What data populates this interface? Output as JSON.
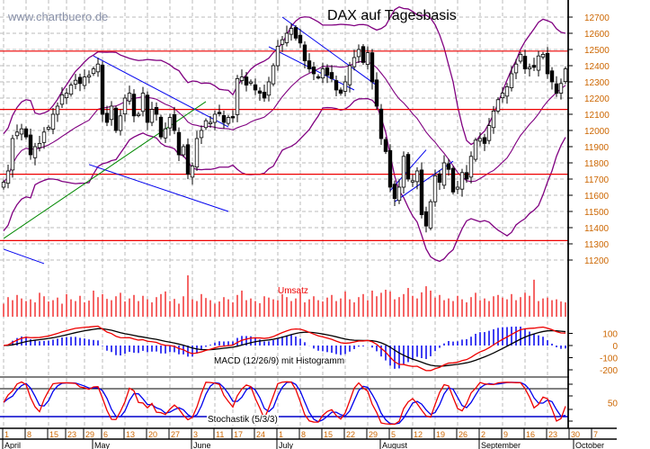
{
  "chart_data": {
    "type": "candlestick",
    "title": "DAX auf Tagesbasis",
    "watermark": "www.chartbuero.de",
    "price_axis": {
      "ylim": [
        11150,
        12800
      ],
      "ticks": [
        11200,
        11300,
        11400,
        11500,
        11600,
        11700,
        11800,
        11900,
        12000,
        12100,
        12200,
        12300,
        12400,
        12500,
        12600,
        12700
      ]
    },
    "grid": true,
    "close": [
      11680,
      11750,
      11950,
      11990,
      12010,
      11960,
      11850,
      11900,
      11920,
      11990,
      12020,
      12100,
      12150,
      12220,
      12230,
      12280,
      12310,
      12290,
      12330,
      12340,
      12380,
      12410,
      12100,
      12050,
      12150,
      12000,
      12090,
      12200,
      12230,
      12090,
      12100,
      12230,
      12050,
      12130,
      12100,
      11960,
      12010,
      12080,
      12000,
      11850,
      11900,
      11730,
      11780,
      11950,
      12000,
      12060,
      12050,
      12100,
      12110,
      12050,
      12080,
      12080,
      12320,
      12330,
      12280,
      12300,
      12250,
      12230,
      12200,
      12300,
      12400,
      12520,
      12560,
      12600,
      12630,
      12570,
      12540,
      12430,
      12380,
      12350,
      12330,
      12380,
      12340,
      12320,
      12250,
      12230,
      12300,
      12400,
      12450,
      12500,
      12420,
      12480,
      12300,
      12150,
      11950,
      11870,
      11650,
      11580,
      11650,
      11840,
      11700,
      11690,
      11750,
      11480,
      11410,
      11560,
      11720,
      11680,
      11800,
      11760,
      11620,
      11650,
      11740,
      11700,
      11840,
      11940,
      11950,
      11920,
      12030,
      12120,
      12190,
      12230,
      12270,
      12350,
      12410,
      12470,
      12380,
      12390,
      12390,
      12460,
      12470,
      12350,
      12300,
      12230,
      12290,
      12380
    ],
    "volume": [
      30,
      45,
      38,
      50,
      42,
      36,
      40,
      33,
      55,
      47,
      35,
      38,
      44,
      30,
      52,
      40,
      36,
      48,
      33,
      37,
      60,
      45,
      52,
      41,
      38,
      47,
      55,
      35,
      42,
      50,
      36,
      48,
      40,
      33,
      45,
      52,
      58,
      36,
      41,
      30,
      47,
      95,
      40,
      36,
      52,
      43,
      38,
      30,
      35,
      45,
      40,
      33,
      50,
      60,
      38,
      42,
      36,
      31,
      47,
      44,
      40,
      38,
      52,
      45,
      36,
      42,
      55,
      33,
      40,
      47,
      38,
      35,
      44,
      50,
      36,
      42,
      58,
      40,
      33,
      45,
      52,
      38,
      60,
      47,
      55,
      62,
      58,
      40,
      45,
      52,
      66,
      48,
      42,
      56,
      70,
      60,
      44,
      50,
      38,
      42,
      36,
      48,
      40,
      33,
      45,
      55,
      38,
      42,
      36,
      47,
      50,
      44,
      40,
      52,
      38,
      45,
      55,
      48,
      85,
      36,
      42,
      44,
      38,
      40,
      35,
      33
    ],
    "horizontal_levels": [
      12490,
      12130,
      11730,
      11320
    ],
    "trend_lines": [
      {
        "color": "#0000ee",
        "from": [
          20,
          12460
        ],
        "to": [
          50,
          12022
        ]
      },
      {
        "color": "#0000ee",
        "from": [
          19,
          11790
        ],
        "to": [
          50,
          11500
        ]
      },
      {
        "color": "#008800",
        "from": [
          0,
          11333
        ],
        "to": [
          45,
          12178
        ]
      },
      {
        "color": "#0000ee",
        "from": [
          0,
          11267
        ],
        "to": [
          9,
          11178
        ]
      },
      {
        "color": "#0000ee",
        "from": [
          62,
          12700
        ],
        "to": [
          83,
          12278
        ]
      },
      {
        "color": "#0000ee",
        "from": [
          59,
          12517
        ],
        "to": [
          78,
          12250
        ]
      },
      {
        "color": "#0000ee",
        "from": [
          86,
          11628
        ],
        "to": [
          94,
          11880
        ]
      },
      {
        "color": "#0000ee",
        "from": [
          87,
          11560
        ],
        "to": [
          100,
          11810
        ]
      }
    ],
    "indicators": {
      "volume_label": "Umsatz",
      "macd_label": "MACD (12/26/9) mit Histogramm",
      "macd_ticks": [
        100,
        0,
        -100,
        -200
      ],
      "stoch_label": "Stochastik (5/3/3)",
      "stoch_ticks": [
        50
      ]
    },
    "x_ticks": [
      {
        "label": "1",
        "day": 0
      },
      {
        "label": "8",
        "day": 5
      },
      {
        "label": "15",
        "day": 10
      },
      {
        "label": "23",
        "day": 14
      },
      {
        "label": "29",
        "day": 18
      },
      {
        "label": "6",
        "day": 22
      },
      {
        "label": "13",
        "day": 27
      },
      {
        "label": "20",
        "day": 32
      },
      {
        "label": "27",
        "day": 37
      },
      {
        "label": "3",
        "day": 42
      },
      {
        "label": "11",
        "day": 47
      },
      {
        "label": "17",
        "day": 51
      },
      {
        "label": "24",
        "day": 56
      },
      {
        "label": "1",
        "day": 61
      },
      {
        "label": "8",
        "day": 66
      },
      {
        "label": "15",
        "day": 71
      },
      {
        "label": "22",
        "day": 76
      },
      {
        "label": "29",
        "day": 81
      },
      {
        "label": "5",
        "day": 86
      },
      {
        "label": "12",
        "day": 91
      },
      {
        "label": "19",
        "day": 96
      },
      {
        "label": "26",
        "day": 101
      },
      {
        "label": "2",
        "day": 106
      },
      {
        "label": "9",
        "day": 111
      },
      {
        "label": "16",
        "day": 116
      },
      {
        "label": "23",
        "day": 121
      },
      {
        "label": "30",
        "day": 126
      },
      {
        "label": "7",
        "day": 131
      }
    ],
    "months": [
      {
        "label": "April",
        "day": 0
      },
      {
        "label": "May",
        "day": 20
      },
      {
        "label": "June",
        "day": 42
      },
      {
        "label": "July",
        "day": 61
      },
      {
        "label": "August",
        "day": 84
      },
      {
        "label": "September",
        "day": 106
      },
      {
        "label": "October",
        "day": 127
      }
    ],
    "colors": {
      "up": "#ffffff",
      "down": "#000000",
      "bands": "#800080",
      "levels": "#ee0000",
      "macd": "#ee0000",
      "signal": "#000000",
      "histogram": "#0000ee",
      "stoch_k": "#ee0000",
      "stoch_d": "#0000ee",
      "volume": "#ee0000",
      "axis_text": "#cc6600"
    }
  }
}
